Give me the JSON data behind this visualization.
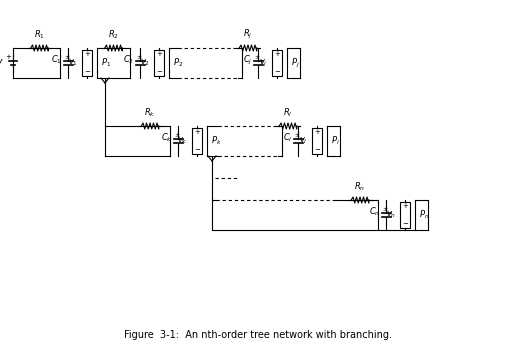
{
  "fig_width": 5.15,
  "fig_height": 3.48,
  "dpi": 100,
  "bg_color": "#ffffff",
  "line_color": "#000000",
  "lw": 0.8,
  "fs": 6.5,
  "title": "Figure  3-1:  An nth-order tree network with branching."
}
